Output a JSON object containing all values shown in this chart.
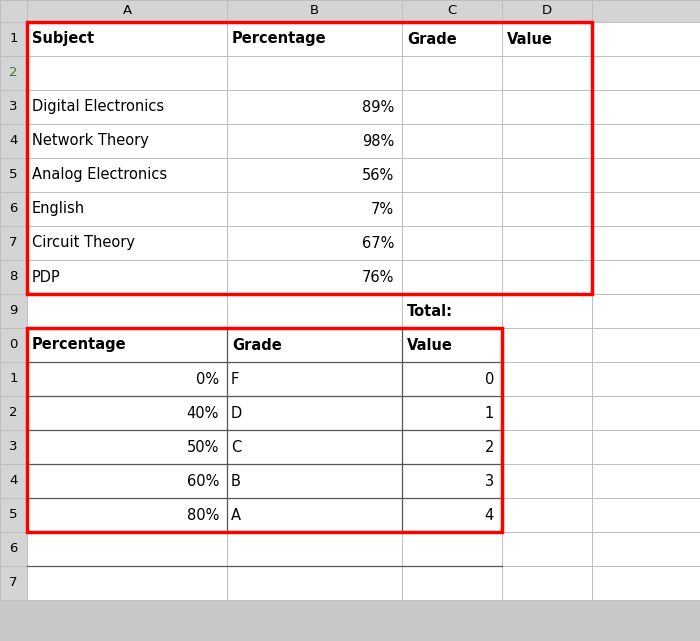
{
  "bg_color": "#C8C8C8",
  "cell_bg": "#FFFFFF",
  "grid_color": "#BFBFBF",
  "header_bg": "#D4D4D4",
  "red_border": "#FF0000",
  "col_letters": [
    "",
    "A",
    "B",
    "C",
    "D",
    ""
  ],
  "n_rows": 17,
  "top_table": {
    "headers": [
      "Subject",
      "Percentage",
      "Grade",
      "Value"
    ],
    "rows": [
      [
        "",
        "",
        "",
        ""
      ],
      [
        "Digital Electronics",
        "89%",
        "",
        ""
      ],
      [
        "Network Theory",
        "98%",
        "",
        ""
      ],
      [
        "Analog Electronics",
        "56%",
        "",
        ""
      ],
      [
        "English",
        "7%",
        "",
        ""
      ],
      [
        "Circuit Theory",
        "67%",
        "",
        ""
      ],
      [
        "PDP",
        "76%",
        "",
        ""
      ]
    ]
  },
  "row9_text": "Total:",
  "bottom_table": {
    "headers": [
      "Percentage",
      "Grade",
      "Value"
    ],
    "rows": [
      [
        "0%",
        "F",
        "0"
      ],
      [
        "40%",
        "D",
        "1"
      ],
      [
        "50%",
        "C",
        "2"
      ],
      [
        "60%",
        "B",
        "3"
      ],
      [
        "80%",
        "A",
        "4"
      ]
    ]
  }
}
